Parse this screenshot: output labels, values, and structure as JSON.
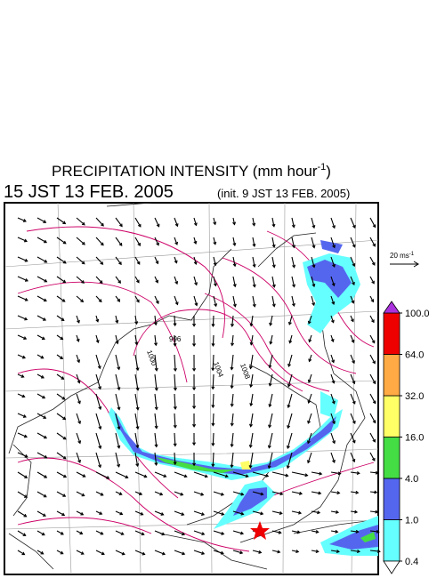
{
  "title": {
    "text": "PRECIPITATION INTENSITY (mm hour",
    "superscript": "-1",
    "close": ")"
  },
  "valid_time": "15 JST 13 FEB. 2005",
  "init_time": "(init. 9 JST 13 FEB. 2005)",
  "vector_scale": {
    "text": "20 ms",
    "superscript": "-1"
  },
  "contour_labels": [
    "996",
    "1000",
    "1004",
    "1008"
  ],
  "colorbar": {
    "levels": [
      {
        "value": 0.4,
        "label": "0.4"
      },
      {
        "value": 1,
        "label": "1.0"
      },
      {
        "value": 4,
        "label": "4.0"
      },
      {
        "value": 16,
        "label": "16.0"
      },
      {
        "value": 32,
        "label": "32.0"
      },
      {
        "value": 64,
        "label": "64.0"
      },
      {
        "value": 100,
        "label": "100.0"
      }
    ],
    "colors": [
      "#66ffff",
      "#5566ee",
      "#44dd44",
      "#ffff66",
      "#ffaa44",
      "#ee0000"
    ],
    "under_color": "#ffffff",
    "over_color": "#aa33dd"
  }
}
